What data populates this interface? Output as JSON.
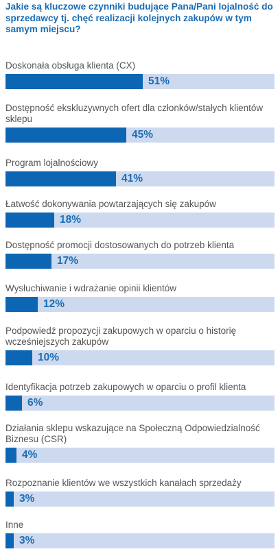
{
  "chart_data": {
    "type": "bar",
    "orientation": "horizontal",
    "title": "Jakie są kluczowe czynniki budujące Pana/Pani lojalność do sprzedawcy tj. chęć realizacji kolejnych zakupów w tym samym miejscu?",
    "categories": [
      "Doskonała obsługa klienta (CX)",
      "Dostępność ekskluzywnych ofert dla członków/stałych klientów sklepu",
      "Program lojalnościowy",
      "Łatwość dokonywania powtarzających się zakupów",
      "Dostępność promocji dostosowanych do potrzeb klienta",
      "Wysłuchiwanie i wdrażanie opinii klientów",
      "Podpowiedź propozycji zakupowych w oparciu o historię wcześniejszych zakupów",
      "Identyfikacja potrzeb zakupowych w oparciu o profil klienta",
      "Działania sklepu wskazujące na Społeczną Odpowiedzialność Biznesu (CSR)",
      "Rozpoznanie klientów we wszystkich kanałach sprzedaży",
      "Inne"
    ],
    "values": [
      51,
      45,
      41,
      18,
      17,
      12,
      10,
      6,
      4,
      3,
      3
    ],
    "value_labels": [
      "51%",
      "45%",
      "41%",
      "18%",
      "17%",
      "12%",
      "10%",
      "6%",
      "4%",
      "3%",
      "3%"
    ],
    "xlim": [
      0,
      100
    ],
    "colors": {
      "bar": "#0d66b3",
      "track": "#cdd9ef",
      "title": "#1b6db3",
      "label_text": "#555555"
    }
  }
}
